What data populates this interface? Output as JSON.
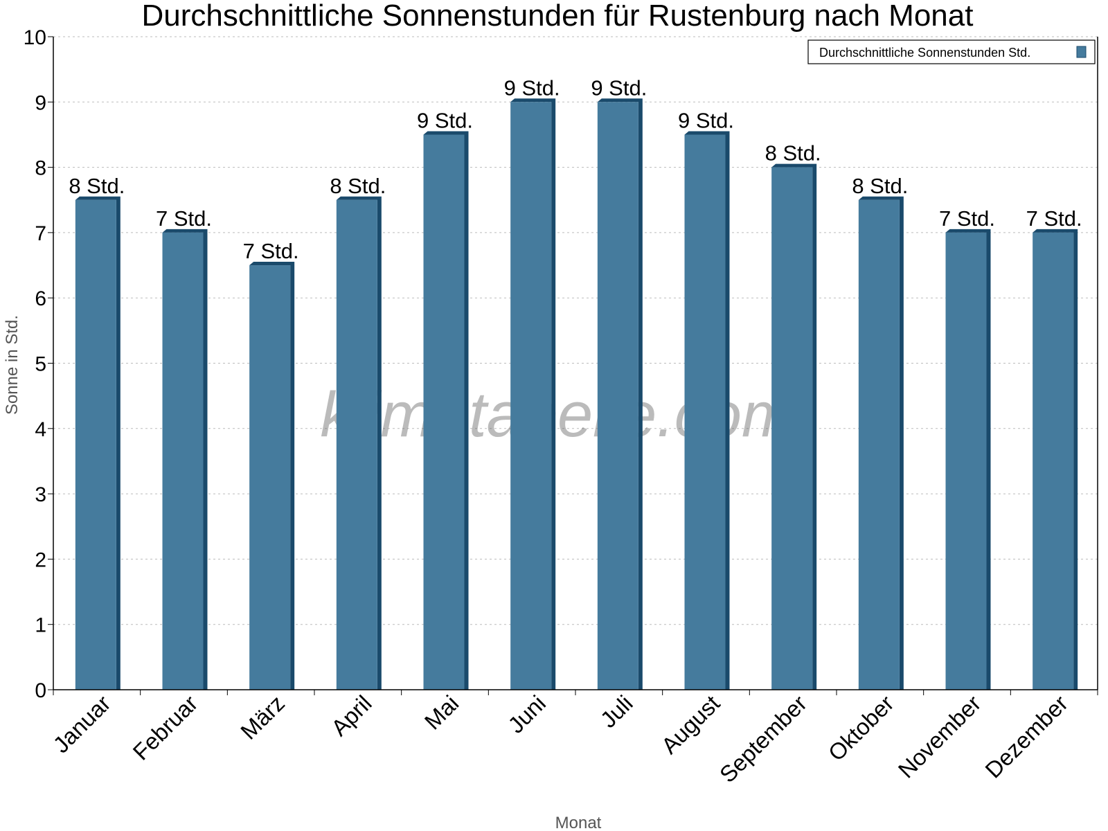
{
  "chart_data": {
    "type": "bar",
    "title": "Durchschnittliche Sonnenstunden für Rustenburg nach Monat",
    "xlabel": "Monat",
    "ylabel": "Sonne in Std.",
    "ylim": [
      0,
      10
    ],
    "yticks": [
      "0",
      "1",
      "2",
      "3",
      "4",
      "5",
      "6",
      "7",
      "8",
      "9",
      "10"
    ],
    "grid": true,
    "legend_position": "top-right",
    "categories": [
      "Januar",
      "Februar",
      "März",
      "April",
      "Mai",
      "Juni",
      "Juli",
      "August",
      "September",
      "Oktober",
      "November",
      "Dezember"
    ],
    "series": [
      {
        "name": "Durchschnittliche Sonnenstunden Std.",
        "values": [
          7.5,
          7,
          6.5,
          7.5,
          8.5,
          9,
          9,
          8.5,
          8,
          7.5,
          7,
          7
        ],
        "data_labels": [
          "8 Std.",
          "7 Std.",
          "7 Std.",
          "8 Std.",
          "9 Std.",
          "9 Std.",
          "9 Std.",
          "9 Std.",
          "8 Std.",
          "8 Std.",
          "7 Std.",
          "7 Std."
        ],
        "color": "#457b9d",
        "shade_color": "#1a4a6b"
      }
    ],
    "watermark": "klimatabelle.com"
  }
}
